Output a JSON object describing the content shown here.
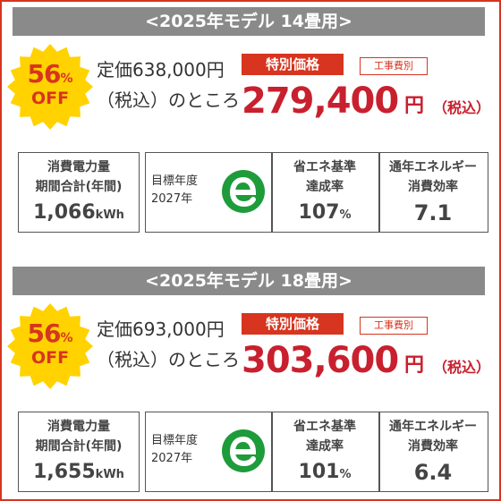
{
  "sections": [
    {
      "header": "<2025年モデル 14畳用>",
      "badge": {
        "percent": "56",
        "percent_sign": "%",
        "off": "OFF"
      },
      "regular_price": "定価638,000円",
      "regular_note": "（税込）のところ",
      "special": {
        "label": "特別価格",
        "construction_note": "工事費別",
        "price": "279,400",
        "unit": "円",
        "tax": "（税込）"
      },
      "energy": {
        "label1": "消費電力量",
        "label2": "期間合計(年間)",
        "value": "1,066",
        "unit": "kWh"
      },
      "target": {
        "label1": "目標年度",
        "label2": "2027年",
        "icon": "e-mark-icon"
      },
      "achievement": {
        "label1": "省エネ基準",
        "label2": "達成率",
        "value": "107",
        "unit": "%"
      },
      "efficiency": {
        "label1": "通年エネルギー",
        "label2": "消費効率",
        "value": "7.1"
      }
    },
    {
      "header": "<2025年モデル 18畳用>",
      "badge": {
        "percent": "56",
        "percent_sign": "%",
        "off": "OFF"
      },
      "regular_price": "定価693,000円",
      "regular_note": "（税込）のところ",
      "special": {
        "label": "特別価格",
        "construction_note": "工事費別",
        "price": "303,600",
        "unit": "円",
        "tax": "（税込）"
      },
      "energy": {
        "label1": "消費電力量",
        "label2": "期間合計(年間)",
        "value": "1,655",
        "unit": "kWh"
      },
      "target": {
        "label1": "目標年度",
        "label2": "2027年",
        "icon": "e-mark-icon"
      },
      "achievement": {
        "label1": "省エネ基準",
        "label2": "達成率",
        "value": "101",
        "unit": "%"
      },
      "efficiency": {
        "label1": "通年エネルギー",
        "label2": "消費効率",
        "value": "6.4"
      }
    }
  ],
  "colors": {
    "accent": "#d7351f",
    "price": "#c8202e",
    "header_bg": "#8a8a8a",
    "badge": "#ffd200",
    "eco": "#1e9b3a"
  }
}
